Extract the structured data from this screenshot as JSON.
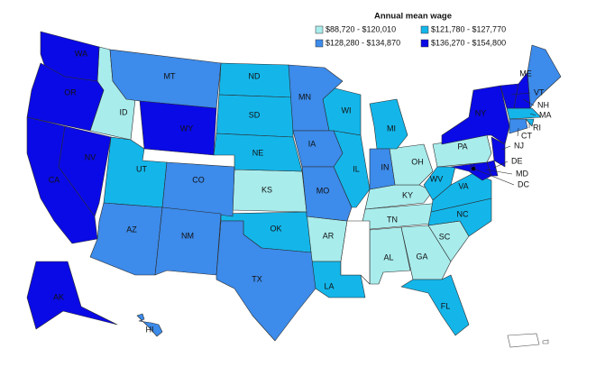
{
  "legend": {
    "title": "Annual mean wage",
    "items": [
      {
        "label": "$88,720 - $120,010",
        "color": "#a9ecec",
        "states": [
          "ID",
          "KS",
          "AR",
          "AL",
          "GA",
          "SC",
          "TN",
          "KY",
          "OH",
          "PA"
        ]
      },
      {
        "label": "$121,780 - $127,770",
        "color": "#14b6ea",
        "states": [
          "ND",
          "SD",
          "NE",
          "UT",
          "OK",
          "WI",
          "MI",
          "IL",
          "LA",
          "FL",
          "NC",
          "WV",
          "VA",
          "MA",
          "RI"
        ]
      },
      {
        "label": "$128,280 - $134,870",
        "color": "#3d8bea",
        "states": [
          "MT",
          "CO",
          "AZ",
          "NM",
          "TX",
          "MN",
          "IA",
          "MO",
          "IN",
          "HI",
          "ME",
          "CT"
        ]
      },
      {
        "label": "$136,270 - $154,800",
        "color": "#0a0ae6",
        "states": [
          "WA",
          "OR",
          "CA",
          "NV",
          "WY",
          "AK",
          "NY",
          "NJ",
          "VT",
          "NH",
          "MD",
          "DC",
          "DE"
        ]
      }
    ]
  }
}
